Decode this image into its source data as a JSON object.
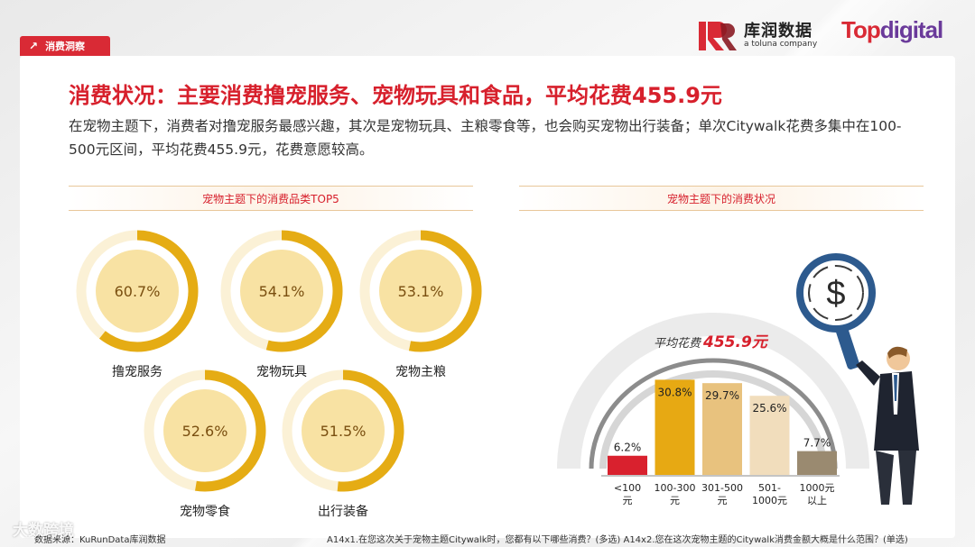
{
  "header": {
    "tag_label": "消费洞察",
    "logo_kr_cn": "库润数据",
    "logo_kr_en": "a toluna company",
    "logo_top_1": "Top",
    "logo_top_2": "digital"
  },
  "title": "消费状况：主要消费撸宠服务、宠物玩具和食品，平均花费455.9元",
  "description": "在宠物主题下，消费者对撸宠服务最感兴趣，其次是宠物玩具、主粮零食等，也会购买宠物出行装备；单次Citywalk花费多集中在100-500元区间，平均花费455.9元，花费意愿较高。",
  "left_section": {
    "title": "宠物主题下的消费品类TOP5"
  },
  "right_section": {
    "title": "宠物主题下的消费状况",
    "avg_label": "平均花费",
    "avg_value": "455.9元"
  },
  "chart_data": [
    {
      "type": "pie",
      "categories": [
        "撸宠服务",
        "宠物玩具",
        "宠物主粮",
        "宠物零食",
        "出行装备"
      ],
      "values": [
        60.7,
        54.1,
        53.1,
        52.6,
        51.5
      ],
      "labels": [
        "60.7%",
        "54.1%",
        "53.1%",
        "52.6%",
        "51.5%"
      ],
      "unit": "%"
    },
    {
      "type": "bar",
      "categories": [
        "<100元",
        "100-300元",
        "301-500元",
        "501-1000元",
        "1000元以上"
      ],
      "category_lines": [
        [
          "<100",
          "元"
        ],
        [
          "100-300",
          "元"
        ],
        [
          "301-500",
          "元"
        ],
        [
          "501-",
          "1000元"
        ],
        [
          "1000元",
          "以上"
        ]
      ],
      "values": [
        6.2,
        30.8,
        29.7,
        25.6,
        7.7
      ],
      "labels": [
        "6.2%",
        "30.8%",
        "29.7%",
        "25.6%",
        "7.7%"
      ],
      "colors": [
        "#d9212e",
        "#e7a913",
        "#e8c27e",
        "#f1ddbc",
        "#9a8a70"
      ],
      "ylim": [
        0,
        35
      ]
    }
  ],
  "footer": {
    "source": "数据来源：KuRunData库润数据",
    "question": "A14x1.在您这次关于宠物主题Citywalk时，您都有以下哪些消费？(多选) A14x2.您在这次宠物主题的Citywalk消费金额大概是什么范围？(单选)",
    "watermark": "大数跨境"
  },
  "colors": {
    "accent": "#d7202c",
    "ring": "#e5ac14",
    "ring_inner": "#f8e2a3"
  }
}
